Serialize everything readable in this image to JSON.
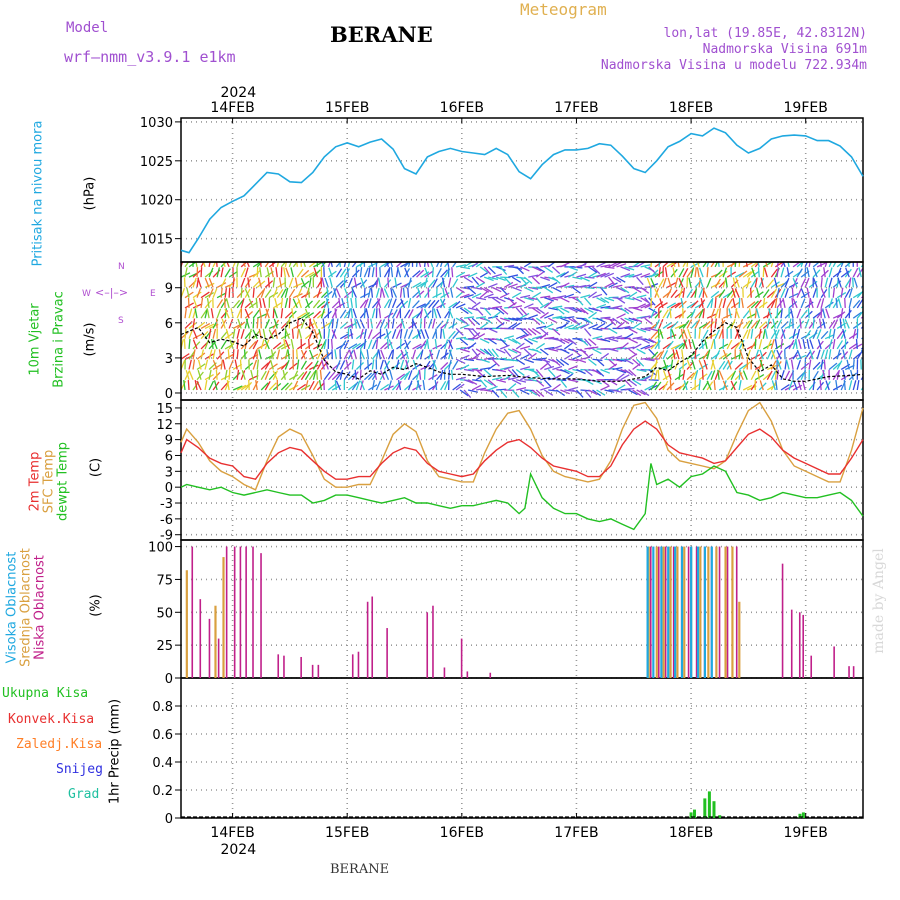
{
  "header": {
    "model_label": "Model",
    "model_name": "wrf–nmm_v3.9.1  e1km",
    "station": "BERANE",
    "product": "Meteogram",
    "coords": "lon,lat (19.85E, 42.8312N)",
    "altitude": "Nadmorska Visina 691m",
    "model_altitude": "Nadmorska Visina u modelu 722.934m"
  },
  "footer": {
    "station": "BERANE",
    "watermark": "made by Angel"
  },
  "colors": {
    "pressure": "#1fa8e0",
    "temp2m": "#e83030",
    "sfc": "#d9a040",
    "dewpt": "#22c022",
    "high_cloud": "#1fa8e0",
    "mid_cloud": "#d9a040",
    "low_cloud": "#c0208a",
    "precip_total": "#22c022",
    "convective": "#e83030",
    "freezing": "#ff7f27",
    "snow": "#3030e0",
    "hail": "#20c0a0",
    "wind_label": "#22c022",
    "compass": "#b04fd0",
    "title_purple": "#a050d0",
    "meteogram": "#e0b050"
  },
  "chart_data": [
    {
      "type": "line",
      "panel": "pressure",
      "ylabel_title": "Pritisak na nivou mora",
      "ylabel": "(hPa)",
      "year": "2024",
      "x_tick_labels": [
        "14FEB",
        "15FEB",
        "16FEB",
        "17FEB",
        "18FEB",
        "19FEB"
      ],
      "x_start_day": 13.55,
      "x_end_day": 19.5,
      "ylim": [
        1012,
        1030.5
      ],
      "yticks": [
        1015,
        1020,
        1025,
        1030
      ],
      "series": [
        {
          "x": [
            13.55,
            13.62,
            13.7,
            13.8,
            13.9,
            14.0,
            14.1,
            14.2,
            14.3,
            14.4,
            14.5,
            14.6,
            14.7,
            14.8,
            14.9,
            15.0,
            15.1,
            15.2,
            15.3,
            15.4,
            15.5,
            15.6,
            15.7,
            15.8,
            15.9,
            16.0,
            16.1,
            16.2,
            16.3,
            16.4,
            16.5,
            16.6,
            16.7,
            16.8,
            16.9,
            17.0,
            17.1,
            17.2,
            17.3,
            17.4,
            17.5,
            17.6,
            17.7,
            17.8,
            17.9,
            18.0,
            18.1,
            18.2,
            18.3,
            18.4,
            18.5,
            18.6,
            18.7,
            18.8,
            18.9,
            19.0,
            19.1,
            19.2,
            19.3,
            19.4,
            19.5
          ],
          "values": [
            1013.5,
            1013.2,
            1015.0,
            1017.5,
            1019.0,
            1019.8,
            1020.5,
            1022.0,
            1023.5,
            1023.3,
            1022.3,
            1022.2,
            1023.5,
            1025.5,
            1026.8,
            1027.3,
            1026.8,
            1027.4,
            1027.8,
            1026.5,
            1024.0,
            1023.3,
            1025.5,
            1026.2,
            1026.6,
            1026.2,
            1026.0,
            1025.8,
            1026.6,
            1025.8,
            1023.6,
            1022.7,
            1024.5,
            1025.8,
            1026.4,
            1026.4,
            1026.6,
            1027.2,
            1027.0,
            1025.6,
            1024.0,
            1023.5,
            1025.0,
            1026.8,
            1027.5,
            1028.5,
            1028.2,
            1029.2,
            1028.6,
            1027.0,
            1026.0,
            1026.6,
            1027.8,
            1028.2,
            1028.3,
            1028.2,
            1027.6,
            1027.6,
            1026.9,
            1025.5,
            1023.0
          ]
        }
      ]
    },
    {
      "type": "line",
      "panel": "wind",
      "ylabel_title": "10m Vjetar",
      "ylabel_sub": "Brzina i Pravac",
      "ylabel": "(m/s)",
      "compass": {
        "n": "N",
        "w": "W",
        "e": "E",
        "s": "S"
      },
      "ylim": [
        -0.6,
        11.2
      ],
      "yticks": [
        0,
        3,
        6,
        9
      ],
      "series": [
        {
          "name": "speed",
          "x": [
            13.55,
            13.7,
            13.8,
            13.9,
            14.0,
            14.1,
            14.2,
            14.3,
            14.4,
            14.5,
            14.6,
            14.7,
            14.8,
            14.9,
            15.0,
            15.1,
            15.2,
            15.3,
            15.4,
            15.5,
            15.6,
            15.7,
            15.8,
            15.9,
            16.0,
            16.2,
            16.4,
            16.6,
            16.8,
            17.0,
            17.2,
            17.4,
            17.6,
            17.7,
            17.8,
            17.9,
            18.0,
            18.1,
            18.2,
            18.3,
            18.4,
            18.5,
            18.6,
            18.7,
            18.8,
            18.9,
            19.0,
            19.2,
            19.4,
            19.5
          ],
          "values": [
            5.0,
            5.6,
            4.3,
            4.6,
            4.4,
            4.0,
            5.0,
            4.6,
            5.0,
            6.0,
            6.4,
            5.2,
            2.8,
            1.8,
            1.6,
            1.2,
            1.9,
            1.6,
            2.2,
            2.0,
            2.5,
            2.2,
            1.8,
            1.6,
            1.6,
            1.4,
            1.5,
            1.3,
            1.2,
            1.2,
            1.0,
            1.0,
            1.4,
            2.2,
            1.9,
            2.6,
            3.2,
            4.4,
            5.3,
            6.0,
            5.6,
            3.0,
            1.8,
            2.4,
            1.2,
            1.0,
            1.0,
            1.4,
            1.5,
            1.6
          ]
        }
      ]
    },
    {
      "type": "line",
      "panel": "temperature",
      "ylabel_title": "2m Temp",
      "ylabel_sub": "SFC Temp",
      "ylabel_sub2": "dewpt Temp",
      "ylabel": "(C)",
      "ylim": [
        -10,
        16.5
      ],
      "yticks": [
        15,
        12,
        9,
        6,
        3,
        0,
        -3,
        -6,
        -9
      ],
      "series": [
        {
          "name": "2m Temp",
          "x": [
            13.55,
            13.6,
            13.7,
            13.8,
            13.9,
            14.0,
            14.1,
            14.2,
            14.3,
            14.4,
            14.5,
            14.6,
            14.7,
            14.8,
            14.9,
            15.0,
            15.1,
            15.2,
            15.3,
            15.4,
            15.5,
            15.6,
            15.7,
            15.8,
            15.9,
            16.0,
            16.1,
            16.2,
            16.3,
            16.4,
            16.5,
            16.6,
            16.7,
            16.8,
            16.9,
            17.0,
            17.1,
            17.2,
            17.3,
            17.4,
            17.5,
            17.6,
            17.7,
            17.8,
            17.9,
            18.0,
            18.1,
            18.2,
            18.3,
            18.4,
            18.5,
            18.6,
            18.7,
            18.8,
            18.9,
            19.0,
            19.1,
            19.2,
            19.3,
            19.4,
            19.5
          ],
          "values": [
            6.5,
            9.0,
            7.5,
            5.5,
            4.5,
            4.0,
            2.0,
            1.5,
            4.5,
            6.5,
            7.5,
            7.0,
            5.0,
            3.0,
            1.5,
            1.5,
            2.0,
            2.0,
            4.5,
            6.5,
            7.5,
            7.0,
            4.5,
            3.0,
            2.5,
            2.0,
            2.5,
            5.0,
            7.0,
            8.5,
            9.0,
            7.5,
            5.5,
            4.0,
            3.5,
            3.0,
            2.0,
            2.0,
            4.0,
            8.0,
            11.0,
            12.5,
            11.0,
            8.0,
            6.5,
            6.0,
            5.5,
            4.5,
            5.0,
            7.5,
            10.0,
            11.0,
            9.5,
            7.0,
            5.5,
            4.5,
            3.5,
            2.5,
            2.5,
            5.5,
            9.0
          ]
        },
        {
          "name": "SFC Temp",
          "x": [
            13.55,
            13.6,
            13.7,
            13.8,
            13.9,
            14.0,
            14.1,
            14.2,
            14.3,
            14.4,
            14.5,
            14.6,
            14.7,
            14.8,
            14.9,
            15.0,
            15.1,
            15.2,
            15.3,
            15.4,
            15.5,
            15.6,
            15.7,
            15.8,
            15.9,
            16.0,
            16.1,
            16.2,
            16.3,
            16.4,
            16.5,
            16.6,
            16.7,
            16.8,
            16.9,
            17.0,
            17.1,
            17.2,
            17.3,
            17.4,
            17.5,
            17.6,
            17.7,
            17.8,
            17.9,
            18.0,
            18.1,
            18.2,
            18.3,
            18.4,
            18.5,
            18.6,
            18.7,
            18.8,
            18.9,
            19.0,
            19.1,
            19.2,
            19.3,
            19.4,
            19.5
          ],
          "values": [
            8.5,
            11.0,
            8.5,
            5.0,
            3.0,
            2.0,
            0.5,
            -0.5,
            5.0,
            9.5,
            11.0,
            10.0,
            6.0,
            1.5,
            0.0,
            0.0,
            0.5,
            0.5,
            5.0,
            10.0,
            12.0,
            10.5,
            5.0,
            2.0,
            1.5,
            1.0,
            1.0,
            6.5,
            11.0,
            14.0,
            14.5,
            11.0,
            6.0,
            3.0,
            2.0,
            1.5,
            1.0,
            1.5,
            5.0,
            11.0,
            15.5,
            16.0,
            13.0,
            7.0,
            5.0,
            4.5,
            4.0,
            3.5,
            5.0,
            10.0,
            14.5,
            16.0,
            12.5,
            7.0,
            4.0,
            3.0,
            2.0,
            1.0,
            1.0,
            7.0,
            15.0
          ]
        },
        {
          "name": "dewpt Temp",
          "x": [
            13.55,
            13.6,
            13.7,
            13.8,
            13.9,
            14.0,
            14.1,
            14.2,
            14.3,
            14.4,
            14.5,
            14.6,
            14.7,
            14.8,
            14.9,
            15.0,
            15.1,
            15.2,
            15.3,
            15.4,
            15.5,
            15.6,
            15.7,
            15.8,
            15.9,
            16.0,
            16.1,
            16.2,
            16.3,
            16.4,
            16.5,
            16.55,
            16.6,
            16.7,
            16.8,
            16.9,
            17.0,
            17.1,
            17.2,
            17.3,
            17.4,
            17.5,
            17.6,
            17.65,
            17.7,
            17.8,
            17.9,
            18.0,
            18.1,
            18.2,
            18.3,
            18.4,
            18.5,
            18.6,
            18.7,
            18.8,
            18.9,
            19.0,
            19.1,
            19.2,
            19.3,
            19.4,
            19.5
          ],
          "values": [
            0.0,
            0.5,
            0.0,
            -0.5,
            0.0,
            -1.0,
            -1.5,
            -1.0,
            -0.5,
            -1.0,
            -1.5,
            -1.5,
            -3.0,
            -2.5,
            -1.5,
            -1.5,
            -2.0,
            -2.5,
            -3.0,
            -2.5,
            -2.0,
            -3.0,
            -3.0,
            -3.5,
            -4.0,
            -3.5,
            -3.5,
            -3.0,
            -2.5,
            -3.0,
            -5.0,
            -4.0,
            2.5,
            -2.0,
            -4.0,
            -5.0,
            -5.0,
            -6.0,
            -6.5,
            -6.0,
            -7.0,
            -8.0,
            -5.0,
            4.5,
            0.5,
            1.5,
            0.0,
            2.0,
            2.5,
            4.0,
            3.0,
            -1.0,
            -1.5,
            -2.5,
            -2.0,
            -1.0,
            -1.5,
            -2.0,
            -2.0,
            -1.5,
            -1.0,
            -2.5,
            -5.5
          ]
        }
      ]
    },
    {
      "type": "bar",
      "panel": "clouds",
      "ylabel_title": "Visoka Oblacnost",
      "ylabel_sub": "Srednja Oblacnost",
      "ylabel_sub2": "Niska Oblacnost",
      "ylabel": "(%)",
      "ylim": [
        0,
        105
      ],
      "yticks": [
        0,
        25,
        50,
        75,
        100
      ],
      "series": [
        {
          "name": "Niska Oblacnost",
          "x": [
            13.65,
            13.72,
            13.8,
            13.88,
            13.95,
            14.02,
            14.07,
            14.12,
            14.18,
            14.25,
            14.4,
            14.45,
            14.6,
            14.7,
            14.75,
            15.05,
            15.1,
            15.18,
            15.22,
            15.35,
            15.7,
            15.75,
            15.85,
            16.0,
            16.05,
            16.25,
            17.65,
            17.72,
            17.78,
            17.85,
            17.92,
            17.98,
            18.05,
            18.12,
            18.18,
            18.25,
            18.32,
            18.4,
            18.8,
            18.88,
            18.95,
            18.98,
            19.05,
            19.25,
            19.38,
            19.42
          ],
          "values": [
            100,
            60,
            45,
            30,
            100,
            100,
            100,
            100,
            100,
            95,
            18,
            17,
            16,
            10,
            10,
            18,
            20,
            58,
            62,
            38,
            50,
            55,
            8,
            30,
            5,
            4,
            100,
            100,
            100,
            100,
            100,
            100,
            100,
            100,
            100,
            100,
            100,
            100,
            87,
            52,
            50,
            48,
            17,
            24,
            9,
            9
          ]
        },
        {
          "name": "Srednja Oblacnost",
          "x": [
            13.6,
            13.85,
            13.92,
            17.63,
            17.7,
            17.76,
            17.82,
            17.88,
            17.94,
            18.0,
            18.08,
            18.15,
            18.22,
            18.3,
            18.36,
            18.42
          ],
          "values": [
            82,
            55,
            92,
            100,
            100,
            100,
            100,
            100,
            100,
            100,
            100,
            100,
            100,
            100,
            100,
            58
          ]
        },
        {
          "name": "Visoka Oblacnost",
          "x": [
            17.62,
            17.67,
            17.74,
            17.8,
            17.86,
            17.92,
            18.0,
            18.06,
            18.12,
            18.18
          ],
          "values": [
            100,
            100,
            100,
            100,
            100,
            100,
            100,
            100,
            100,
            100
          ]
        }
      ]
    },
    {
      "type": "bar",
      "panel": "precip",
      "ylabel": "1hr Precip (mm)",
      "legend": [
        "Ukupna Kisa",
        "Konvek.Kisa",
        "Zaledj.Kisa",
        "Snijeg",
        "Grad"
      ],
      "ylim": [
        0,
        1.0
      ],
      "yticks": [
        0,
        0.2,
        0.4,
        0.6,
        0.8
      ],
      "series": [
        {
          "name": "Ukupna Kisa",
          "x": [
            18.0,
            18.03,
            18.12,
            18.16,
            18.2,
            18.25,
            18.95,
            18.98
          ],
          "values": [
            0.04,
            0.06,
            0.14,
            0.19,
            0.12,
            0.02,
            0.03,
            0.04
          ]
        }
      ]
    }
  ]
}
